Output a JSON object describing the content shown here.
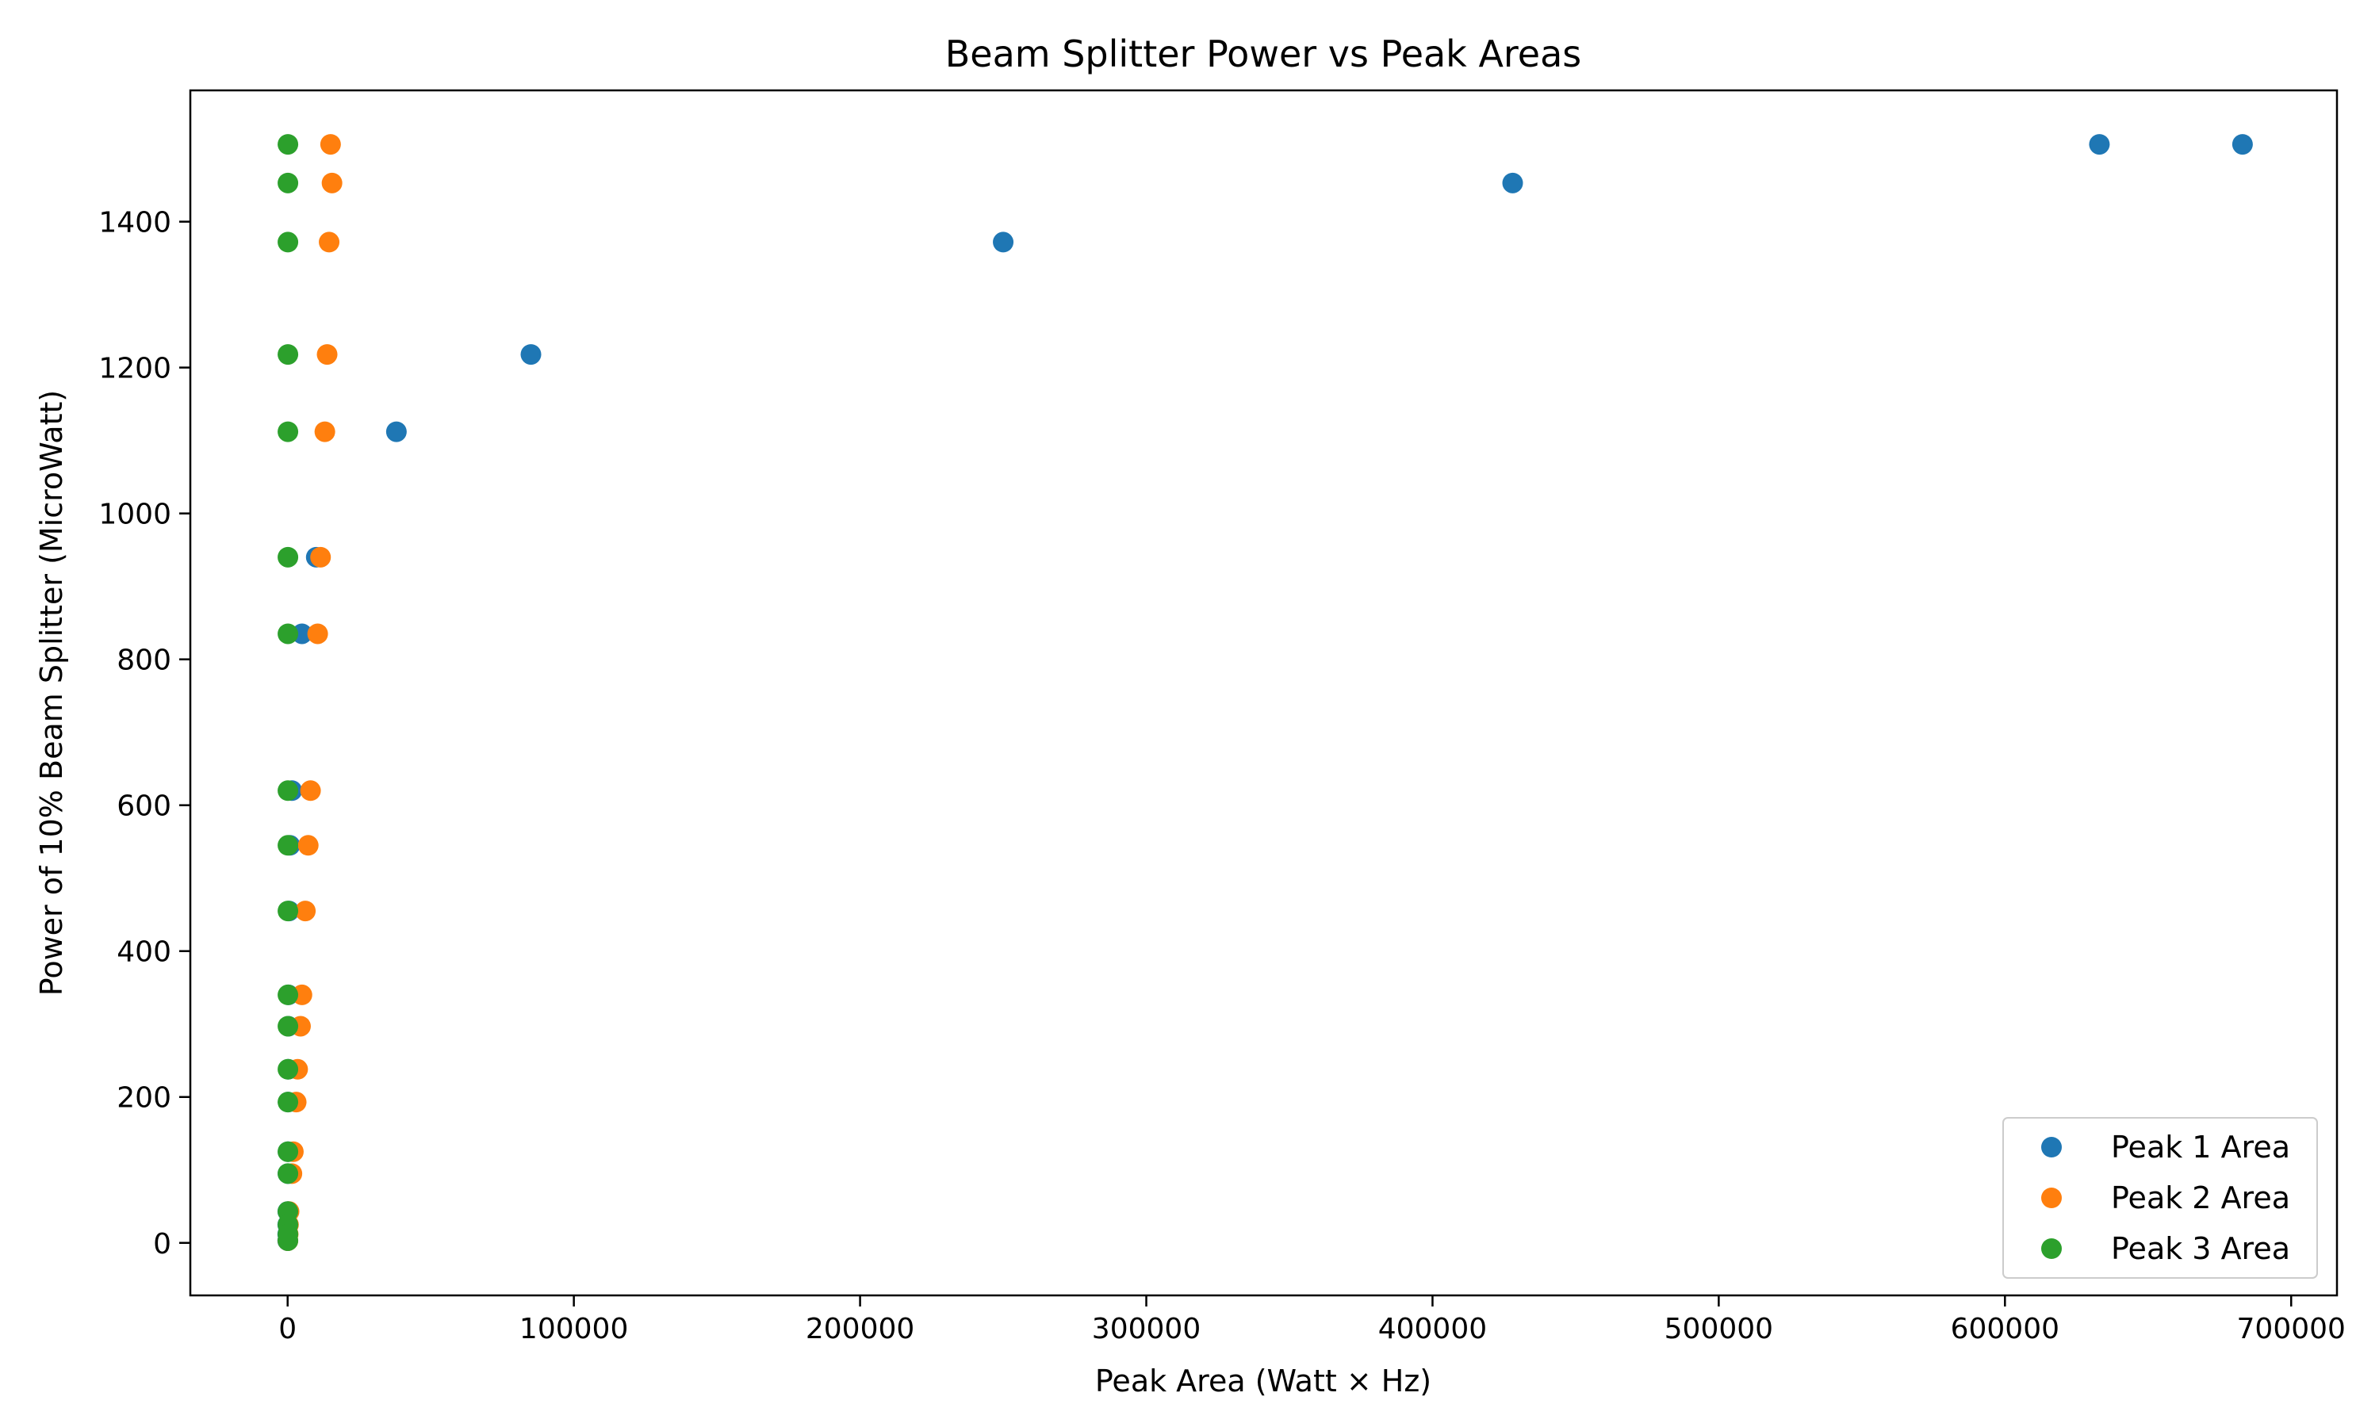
{
  "chart_data": {
    "type": "scatter",
    "title": "Beam Splitter Power vs Peak Areas",
    "xlabel": "Peak Area (Watt × Hz)",
    "ylabel": "Power of 10% Beam Splitter (MicroWatt)",
    "xlim": [
      -34000,
      716000
    ],
    "ylim": [
      -72,
      1580
    ],
    "xticks": [
      0,
      100000,
      200000,
      300000,
      400000,
      500000,
      600000,
      700000
    ],
    "yticks": [
      0,
      200,
      400,
      600,
      800,
      1000,
      1200,
      1400
    ],
    "grid": false,
    "legend_position": "lower-right",
    "series": [
      {
        "name": "Peak 1 Area",
        "color": "#1f77b4",
        "points": [
          [
            683000,
            1506
          ],
          [
            633000,
            1506
          ],
          [
            428000,
            1453
          ],
          [
            250000,
            1372
          ],
          [
            85000,
            1218
          ],
          [
            38000,
            1112
          ],
          [
            10000,
            940
          ],
          [
            5000,
            835
          ],
          [
            1500,
            620
          ],
          [
            800,
            545
          ],
          [
            500,
            455
          ],
          [
            300,
            340
          ],
          [
            250,
            297
          ],
          [
            200,
            238
          ],
          [
            150,
            193
          ],
          [
            120,
            125
          ],
          [
            100,
            95
          ],
          [
            50,
            43
          ],
          [
            30,
            25
          ],
          [
            20,
            12
          ],
          [
            10,
            3
          ]
        ]
      },
      {
        "name": "Peak 2 Area",
        "color": "#ff7f0e",
        "points": [
          [
            15000,
            1506
          ],
          [
            15500,
            1453
          ],
          [
            14500,
            1372
          ],
          [
            13800,
            1218
          ],
          [
            13000,
            1112
          ],
          [
            11500,
            940
          ],
          [
            10500,
            835
          ],
          [
            8000,
            620
          ],
          [
            7200,
            545
          ],
          [
            6200,
            455
          ],
          [
            5000,
            340
          ],
          [
            4500,
            297
          ],
          [
            3500,
            238
          ],
          [
            3000,
            193
          ],
          [
            2000,
            125
          ],
          [
            1500,
            95
          ],
          [
            500,
            43
          ],
          [
            300,
            25
          ],
          [
            200,
            12
          ],
          [
            100,
            3
          ]
        ]
      },
      {
        "name": "Peak 3 Area",
        "color": "#2ca02c",
        "points": [
          [
            100,
            1506
          ],
          [
            100,
            1453
          ],
          [
            100,
            1372
          ],
          [
            100,
            1218
          ],
          [
            100,
            1112
          ],
          [
            100,
            940
          ],
          [
            100,
            835
          ],
          [
            100,
            620
          ],
          [
            100,
            545
          ],
          [
            100,
            455
          ],
          [
            100,
            340
          ],
          [
            100,
            297
          ],
          [
            100,
            238
          ],
          [
            100,
            193
          ],
          [
            100,
            125
          ],
          [
            100,
            95
          ],
          [
            100,
            43
          ],
          [
            100,
            25
          ],
          [
            100,
            12
          ],
          [
            100,
            3
          ]
        ]
      }
    ]
  }
}
